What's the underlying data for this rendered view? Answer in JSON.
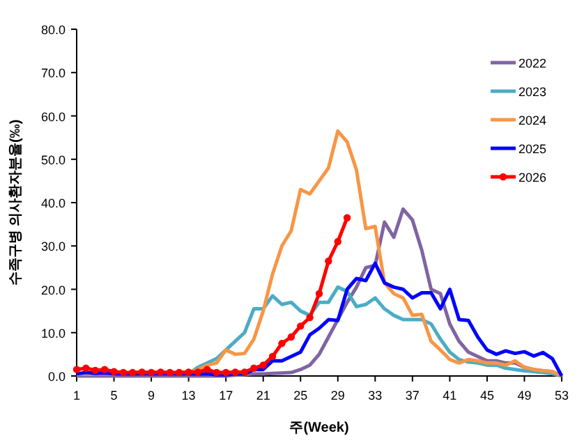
{
  "chart_data": {
    "type": "line",
    "xlabel": "주(Week)",
    "ylabel": "수족구병 의사환자분율(‰)",
    "x": [
      1,
      2,
      3,
      4,
      5,
      6,
      7,
      8,
      9,
      10,
      11,
      12,
      13,
      14,
      15,
      16,
      17,
      18,
      19,
      20,
      21,
      22,
      23,
      24,
      25,
      26,
      27,
      28,
      29,
      30,
      31,
      32,
      33,
      34,
      35,
      36,
      37,
      38,
      39,
      40,
      41,
      42,
      43,
      44,
      45,
      46,
      47,
      48,
      49,
      50,
      51,
      52,
      53
    ],
    "xlim": [
      1,
      53
    ],
    "xticks": [
      1,
      5,
      9,
      13,
      17,
      21,
      25,
      29,
      33,
      37,
      41,
      45,
      49,
      53
    ],
    "ylim": [
      0,
      80
    ],
    "yticks": [
      {
        "value": 0,
        "label": "0.0"
      },
      {
        "value": 10,
        "label": "10.0"
      },
      {
        "value": 20,
        "label": "20.0"
      },
      {
        "value": 30,
        "label": "30.0"
      },
      {
        "value": 40,
        "label": "40.0"
      },
      {
        "value": 50,
        "label": "50.0"
      },
      {
        "value": 60,
        "label": "60.0"
      },
      {
        "value": 70,
        "label": "70.0"
      },
      {
        "value": 80,
        "label": "80.0"
      }
    ],
    "grid": false,
    "legend": "top right",
    "line_style": "solid",
    "series": [
      {
        "name": "2022",
        "color": "#8064a2",
        "marker": "none",
        "values": [
          0,
          0,
          0,
          0,
          0,
          0,
          0,
          0,
          0,
          0,
          0,
          0,
          0,
          0,
          0,
          0,
          0,
          0.2,
          0.3,
          0.5,
          0.5,
          0.6,
          0.7,
          0.8,
          1.5,
          2.5,
          5,
          9,
          13,
          17,
          20.5,
          25,
          25.5,
          35.5,
          32,
          38.5,
          36,
          29,
          20,
          19,
          12,
          8,
          5.5,
          4.5,
          3.5,
          3.5,
          3,
          3,
          2,
          1.5,
          1.2,
          1,
          0
        ]
      },
      {
        "name": "2023",
        "color": "#4bacc6",
        "marker": "none",
        "values": [
          null,
          null,
          null,
          null,
          null,
          null,
          null,
          null,
          null,
          null,
          null,
          0.5,
          0.5,
          2,
          3,
          4,
          6,
          8,
          10,
          15.5,
          15.5,
          18.5,
          16.5,
          17,
          15,
          14,
          17,
          17,
          20.5,
          19.5,
          16,
          16.5,
          18,
          15.5,
          14,
          13,
          13,
          13,
          12,
          8.5,
          5.5,
          3.8,
          3.2,
          3,
          2.5,
          2.5,
          1.8,
          1.5,
          1.2,
          1,
          0.8,
          0.5,
          0
        ]
      },
      {
        "name": "2024",
        "color": "#f79646",
        "marker": "none",
        "values": [
          0.5,
          0.5,
          0.5,
          0.5,
          0.5,
          0.5,
          0.5,
          0.5,
          0.5,
          0.5,
          0.5,
          0.5,
          0.5,
          1.5,
          2.5,
          3,
          6,
          5,
          5.2,
          8.5,
          15,
          23.5,
          30,
          33.5,
          43,
          42,
          45,
          48,
          56.5,
          54,
          47.5,
          34,
          34.5,
          21.5,
          19,
          18,
          14,
          14.2,
          8,
          6,
          3.8,
          3,
          3.8,
          3.5,
          3,
          3,
          2.5,
          3.5,
          2,
          1.5,
          1.2,
          1,
          0
        ]
      },
      {
        "name": "2025",
        "color": "#0000ff",
        "marker": "none",
        "values": [
          0.5,
          0.8,
          0.6,
          0.7,
          0.5,
          0.5,
          0.5,
          0.5,
          0.5,
          0.5,
          0.5,
          0.5,
          0.5,
          0.5,
          0.5,
          0.3,
          0.3,
          0.5,
          0.5,
          1.5,
          1.5,
          3.5,
          3.5,
          4.5,
          5.5,
          9.5,
          11,
          13,
          12.8,
          20,
          22.5,
          22,
          26,
          21.5,
          20.5,
          20,
          18,
          19.2,
          19.2,
          15.5,
          20,
          13,
          12.8,
          9,
          6,
          5,
          5.8,
          5.2,
          5.6,
          4.6,
          5.4,
          4,
          0
        ]
      },
      {
        "name": "2026",
        "color": "#ff0000",
        "marker": "circle",
        "values": [
          1.5,
          1.8,
          1.3,
          1.5,
          1,
          0.8,
          0.8,
          0.9,
          0.8,
          0.9,
          0.8,
          0.8,
          0.9,
          0.9,
          1.5,
          0.8,
          0.8,
          0.9,
          0.9,
          1.8,
          2.5,
          4.5,
          7.5,
          9,
          11.5,
          13.5,
          19,
          26.5,
          31,
          36.5,
          null,
          null,
          null,
          null,
          null,
          null,
          null,
          null,
          null,
          null,
          null,
          null,
          null,
          null,
          null,
          null,
          null,
          null,
          null,
          null,
          null,
          null,
          null
        ]
      }
    ]
  }
}
